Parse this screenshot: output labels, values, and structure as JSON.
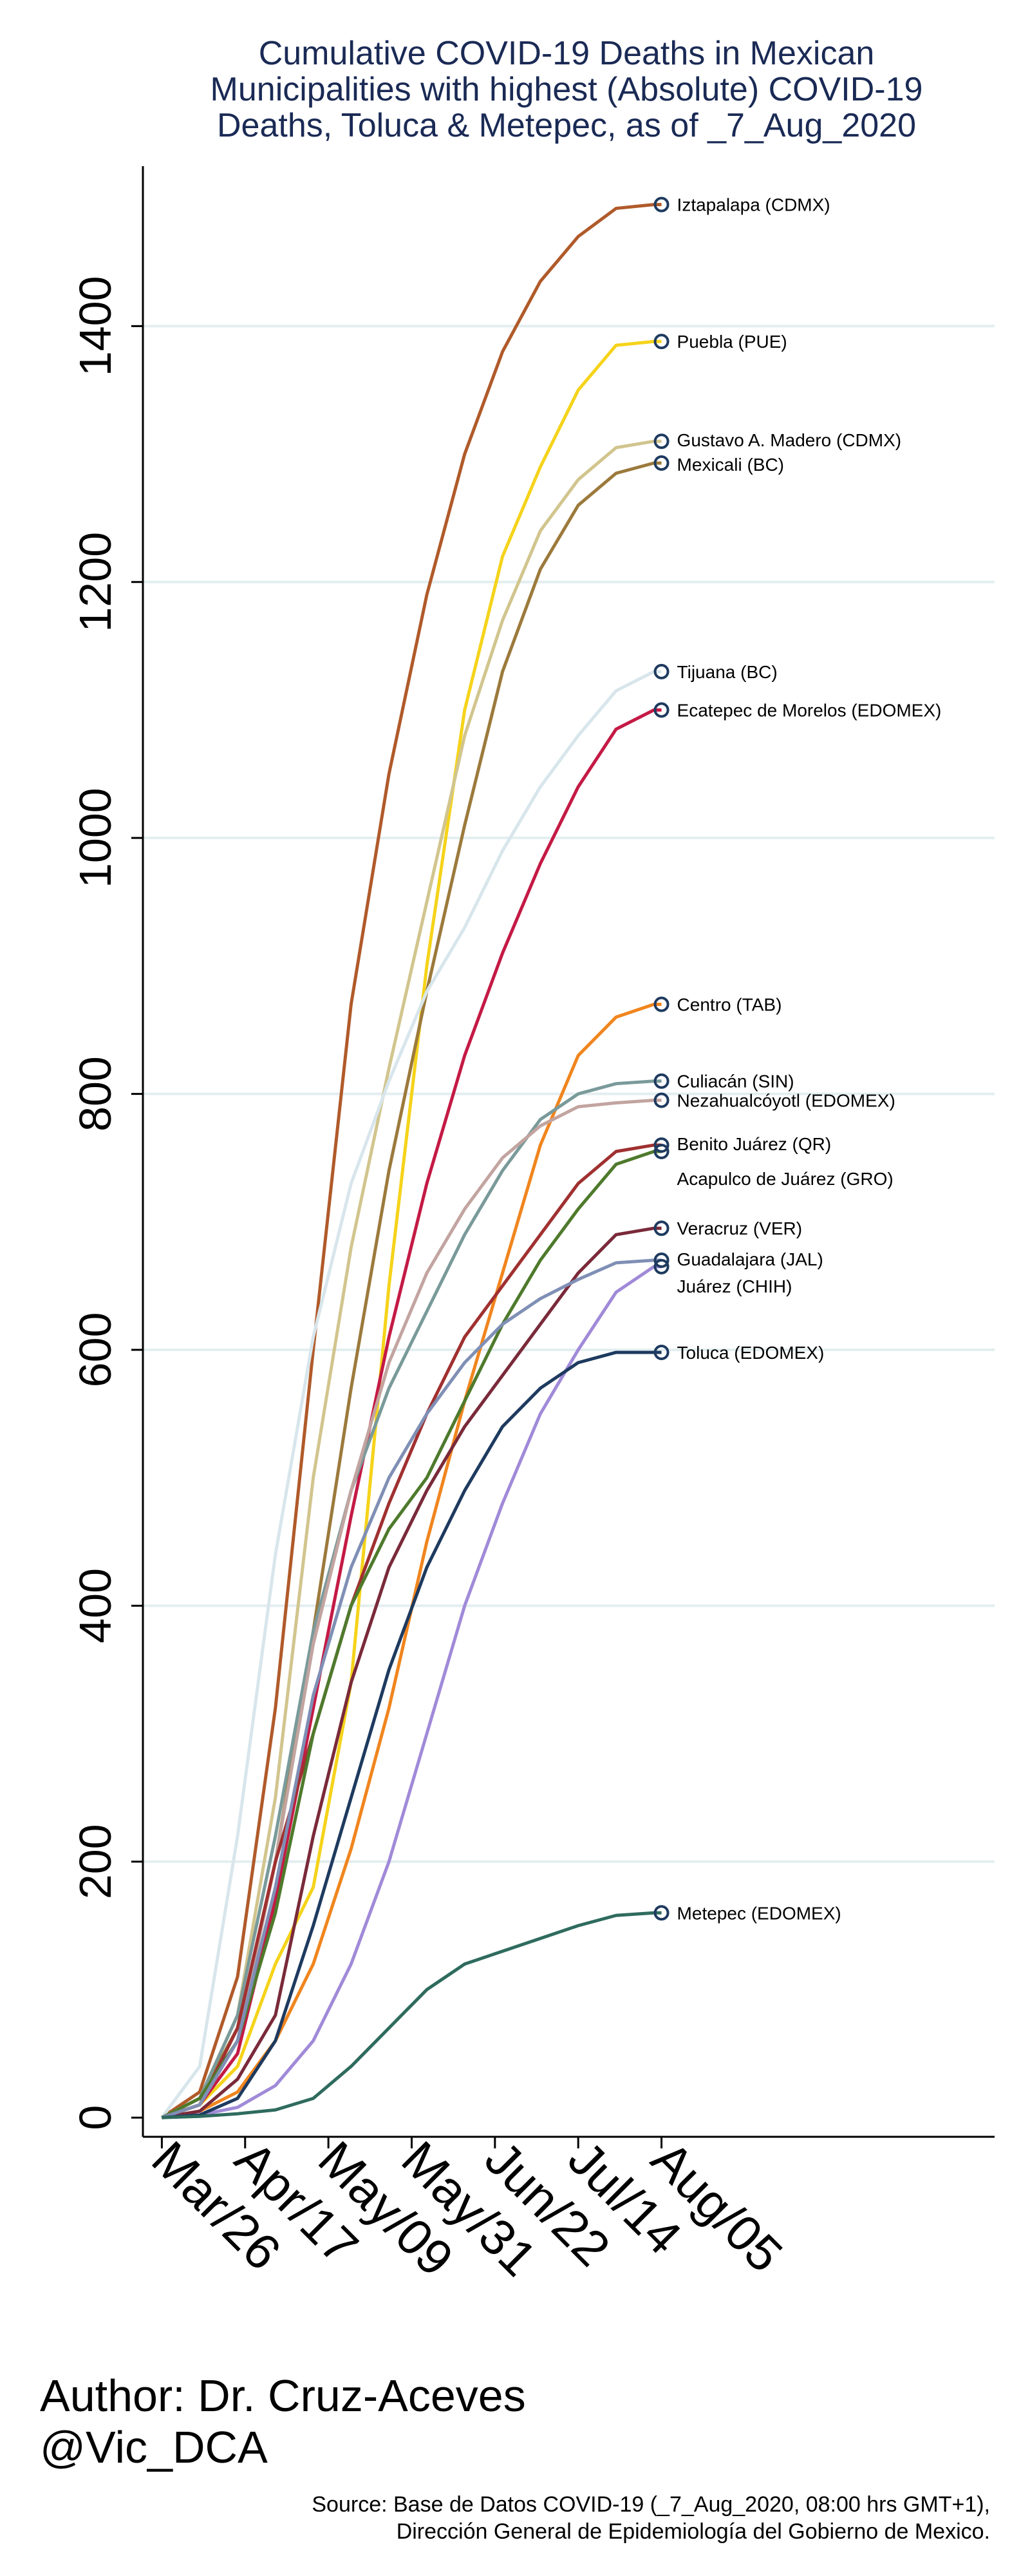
{
  "title_lines": [
    "Cumulative COVID-19 Deaths in Mexican",
    "Municipalities with highest (Absolute) COVID-19",
    "Deaths, Toluca & Metepec, as of _7_Aug_2020"
  ],
  "author_line": "Author: Dr. Cruz-Aceves",
  "handle": "@Vic_DCA",
  "source_lines": [
    "Source: Base de Datos COVID-19 (_7_Aug_2020, 08:00 hrs GMT+1),",
    "Dirección General de Epidemiología del Gobierno de Mexico."
  ],
  "chart_data": {
    "type": "line",
    "title": "Cumulative COVID-19 Deaths in Mexican Municipalities with highest (Absolute) COVID-19 Deaths, Toluca & Metepec, as of _7_Aug_2020",
    "xlabel": "",
    "ylabel": "",
    "x_ticks": [
      "Mar/26",
      "Apr/17",
      "May/09",
      "May/31",
      "Jun/22",
      "Jul/14",
      "Aug/05"
    ],
    "x_tick_days": [
      0,
      22,
      44,
      66,
      88,
      110,
      132
    ],
    "y_ticks": [
      0,
      200,
      400,
      600,
      800,
      1000,
      1200,
      1400
    ],
    "xlim": [
      -5,
      220
    ],
    "ylim": [
      -15,
      1525
    ],
    "grid": true,
    "legend": "end-of-line labels",
    "series": [
      {
        "name": "Iztapalapa (CDMX)",
        "color": "#b05a2a",
        "x": [
          0,
          10,
          20,
          30,
          40,
          50,
          60,
          70,
          80,
          90,
          100,
          110,
          120,
          130,
          132
        ],
        "y": [
          0,
          20,
          110,
          320,
          600,
          870,
          1050,
          1190,
          1300,
          1380,
          1435,
          1470,
          1492,
          1495,
          1495
        ]
      },
      {
        "name": "Puebla (PUE)",
        "color": "#f5d31a",
        "x": [
          0,
          10,
          20,
          30,
          40,
          50,
          60,
          70,
          80,
          90,
          100,
          110,
          120,
          130,
          132
        ],
        "y": [
          0,
          10,
          40,
          120,
          180,
          340,
          650,
          900,
          1100,
          1220,
          1290,
          1350,
          1385,
          1388,
          1388
        ]
      },
      {
        "name": "Gustavo A. Madero (CDMX)",
        "color": "#d1c58e",
        "x": [
          0,
          10,
          20,
          30,
          40,
          50,
          60,
          70,
          80,
          90,
          100,
          110,
          120,
          130,
          132
        ],
        "y": [
          0,
          15,
          80,
          250,
          500,
          680,
          820,
          950,
          1080,
          1170,
          1240,
          1280,
          1305,
          1310,
          1310
        ]
      },
      {
        "name": "Mexicali (BC)",
        "color": "#9c7a3c",
        "x": [
          0,
          10,
          20,
          30,
          40,
          50,
          60,
          70,
          80,
          90,
          100,
          110,
          120,
          130,
          132
        ],
        "y": [
          0,
          15,
          70,
          200,
          380,
          570,
          740,
          880,
          1010,
          1130,
          1210,
          1260,
          1285,
          1293,
          1293
        ]
      },
      {
        "name": "Tijuana (BC)",
        "color": "#d8e6ec",
        "x": [
          0,
          10,
          20,
          30,
          40,
          50,
          60,
          70,
          80,
          90,
          100,
          110,
          120,
          130,
          132
        ],
        "y": [
          0,
          40,
          220,
          440,
          610,
          730,
          810,
          880,
          930,
          990,
          1040,
          1080,
          1115,
          1130,
          1130
        ]
      },
      {
        "name": "Ecatepec de Morelos (EDOMEX)",
        "color": "#c41a45",
        "x": [
          0,
          10,
          20,
          30,
          40,
          50,
          60,
          70,
          80,
          90,
          100,
          110,
          120,
          130,
          132
        ],
        "y": [
          0,
          10,
          50,
          170,
          320,
          470,
          610,
          730,
          830,
          910,
          980,
          1040,
          1085,
          1100,
          1100
        ]
      },
      {
        "name": "Centro (TAB)",
        "color": "#f0851e",
        "x": [
          0,
          10,
          20,
          30,
          40,
          50,
          60,
          70,
          80,
          90,
          100,
          110,
          120,
          130,
          132
        ],
        "y": [
          0,
          5,
          20,
          60,
          120,
          210,
          320,
          450,
          560,
          660,
          760,
          830,
          860,
          870,
          870
        ]
      },
      {
        "name": "Culiacán (SIN)",
        "color": "#7a9a9a",
        "x": [
          0,
          10,
          20,
          30,
          40,
          50,
          60,
          70,
          80,
          90,
          100,
          110,
          120,
          130,
          132
        ],
        "y": [
          0,
          15,
          80,
          220,
          380,
          490,
          570,
          630,
          690,
          740,
          780,
          800,
          808,
          810,
          810
        ]
      },
      {
        "name": "Nezahualcóyotl (EDOMEX)",
        "color": "#c2a4a0",
        "x": [
          0,
          10,
          20,
          30,
          40,
          50,
          60,
          70,
          80,
          90,
          100,
          110,
          120,
          130,
          132
        ],
        "y": [
          0,
          10,
          60,
          200,
          370,
          490,
          590,
          660,
          710,
          750,
          775,
          790,
          793,
          795,
          795
        ]
      },
      {
        "name": "Benito Juárez (QR)",
        "color": "#a03030",
        "x": [
          0,
          10,
          20,
          30,
          40,
          50,
          60,
          70,
          80,
          90,
          100,
          110,
          120,
          130,
          132
        ],
        "y": [
          0,
          10,
          70,
          200,
          300,
          400,
          480,
          550,
          610,
          650,
          690,
          730,
          755,
          760,
          760
        ]
      },
      {
        "name": "Acapulco de Juárez (GRO)",
        "color": "#4e7a2c",
        "x": [
          0,
          10,
          20,
          30,
          40,
          50,
          60,
          70,
          80,
          90,
          100,
          110,
          120,
          130,
          132
        ],
        "y": [
          0,
          15,
          60,
          160,
          300,
          400,
          460,
          500,
          560,
          620,
          670,
          710,
          745,
          755,
          755
        ]
      },
      {
        "name": "Veracruz (VER)",
        "color": "#7a2a3a",
        "x": [
          0,
          10,
          20,
          30,
          40,
          50,
          60,
          70,
          80,
          90,
          100,
          110,
          120,
          130,
          132
        ],
        "y": [
          0,
          5,
          30,
          80,
          220,
          340,
          430,
          490,
          540,
          580,
          620,
          660,
          690,
          695,
          695
        ]
      },
      {
        "name": "Guadalajara (JAL)",
        "color": "#7f8fb5",
        "x": [
          0,
          10,
          20,
          30,
          40,
          50,
          60,
          70,
          80,
          90,
          100,
          110,
          120,
          130,
          132
        ],
        "y": [
          0,
          10,
          60,
          180,
          330,
          430,
          500,
          550,
          590,
          620,
          640,
          655,
          668,
          670,
          670
        ]
      },
      {
        "name": "Juárez (CHIH)",
        "color": "#a08ad8",
        "x": [
          0,
          10,
          20,
          30,
          40,
          50,
          60,
          70,
          80,
          90,
          100,
          110,
          120,
          130,
          132
        ],
        "y": [
          0,
          2,
          8,
          25,
          60,
          120,
          200,
          300,
          400,
          480,
          550,
          600,
          645,
          665,
          665
        ]
      },
      {
        "name": "Toluca (EDOMEX)",
        "color": "#1e3a5f",
        "x": [
          0,
          10,
          20,
          30,
          40,
          50,
          60,
          70,
          80,
          90,
          100,
          110,
          120,
          130,
          132
        ],
        "y": [
          0,
          2,
          15,
          60,
          150,
          250,
          350,
          430,
          490,
          540,
          570,
          590,
          598,
          598,
          598
        ]
      },
      {
        "name": "Metepec (EDOMEX)",
        "color": "#2e6b5e",
        "x": [
          0,
          10,
          20,
          30,
          40,
          50,
          60,
          70,
          80,
          90,
          100,
          110,
          120,
          130,
          132
        ],
        "y": [
          0,
          1,
          3,
          6,
          15,
          40,
          70,
          100,
          120,
          130,
          140,
          150,
          158,
          160,
          160
        ]
      }
    ]
  }
}
